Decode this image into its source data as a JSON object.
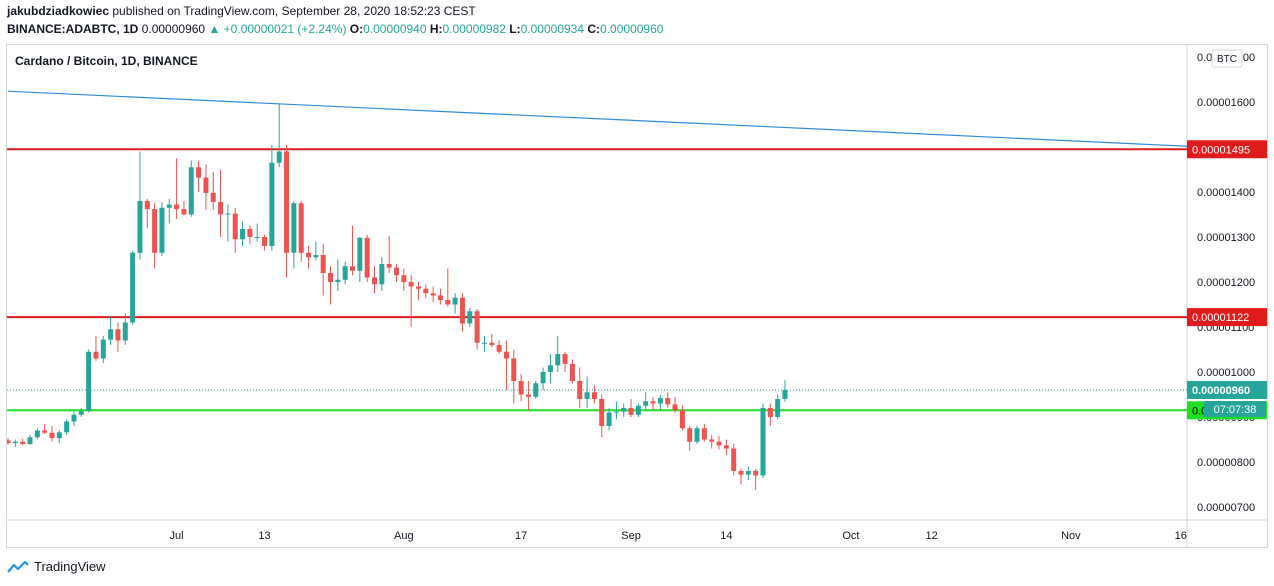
{
  "header": {
    "author": "jakubdziadkowiec",
    "published_text": "published on TradingView.com, September 28, 2020 18:52:23 CEST",
    "symbol": "BINANCE:ADABTC, 1D",
    "last": "0.00000960",
    "change": "+0.00000021 (+2.24%)",
    "o_label": "O:",
    "o": "0.00000940",
    "h_label": "H:",
    "h": "0.00000982",
    "l_label": "L:",
    "l": "0.00000934",
    "c_label": "C:",
    "c": "0.00000960"
  },
  "legend_title": "Cardano / Bitcoin, 1D, BINANCE",
  "currency_badge": "BTC",
  "footer_brand": "TradingView",
  "colors": {
    "up": "#26a69a",
    "down": "#ef5350",
    "resistance": "#e01b1b",
    "support": "#1fe01f",
    "trendline": "#2f8bd7",
    "price_label": "#26a69a"
  },
  "chart_data": {
    "type": "candlestick",
    "title": "Cardano / Bitcoin, 1D, BINANCE",
    "ylim": [
      6.72e-06,
      1.718e-05
    ],
    "y_ticks": [
      "0.00000700",
      "0.00000800",
      "0.00000900",
      "0.00001000",
      "0.00001100",
      "0.00001200",
      "0.00001300",
      "0.00001400",
      "0.00001600",
      "0.00001700"
    ],
    "x_ticks": [
      {
        "day": 23,
        "label": "Jul"
      },
      {
        "day": 35,
        "label": "13"
      },
      {
        "day": 54,
        "label": "Aug"
      },
      {
        "day": 70,
        "label": "17"
      },
      {
        "day": 85,
        "label": "Sep"
      },
      {
        "day": 98,
        "label": "14"
      },
      {
        "day": 115,
        "label": "Oct"
      },
      {
        "day": 126,
        "label": "12"
      },
      {
        "day": 145,
        "label": "Nov"
      },
      {
        "day": 160,
        "label": "16"
      }
    ],
    "day_zero": "2020-06-08",
    "countdown": "07:07:38",
    "horizontal_levels": [
      {
        "name": "resistance-upper",
        "value": 1.495e-05,
        "label": "0.00001495",
        "color": "#e01b1b"
      },
      {
        "name": "resistance-lower",
        "value": 1.122e-05,
        "label": "0.00001122",
        "color": "#e01b1b"
      },
      {
        "name": "support",
        "value": 9.15e-06,
        "label": "0.00000915",
        "color": "#1fe01f"
      }
    ],
    "last_price": {
      "value": 9.6e-06,
      "label": "0.00000960"
    },
    "trendline": {
      "from": {
        "day": 0,
        "value": 1.624e-05
      },
      "to": {
        "day": 163,
        "value": 1.5e-05
      }
    },
    "candles": [
      [
        8.48e-06,
        8.53e-06,
        8.38e-06,
        8.42e-06
      ],
      [
        8.42e-06,
        8.5e-06,
        8.34e-06,
        8.45e-06
      ],
      [
        8.45e-06,
        8.52e-06,
        8.37e-06,
        8.4e-06
      ],
      [
        8.4e-06,
        8.6e-06,
        8.38e-06,
        8.55e-06
      ],
      [
        8.55e-06,
        8.75e-06,
        8.5e-06,
        8.7e-06
      ],
      [
        8.7e-06,
        8.85e-06,
        8.62e-06,
        8.65e-06
      ],
      [
        8.65e-06,
        8.8e-06,
        8.45e-06,
        8.53e-06
      ],
      [
        8.53e-06,
        8.7e-06,
        8.42e-06,
        8.66e-06
      ],
      [
        8.66e-06,
        8.95e-06,
        8.6e-06,
        8.9e-06
      ],
      [
        8.9e-06,
        9.13e-06,
        8.8e-06,
        9.05e-06
      ],
      [
        9.05e-06,
        9.2e-06,
        9e-06,
        9.13e-06
      ],
      [
        9.13e-06,
        1.05e-05,
        9.1e-06,
        1.045e-05
      ],
      [
        1.045e-05,
        1.08e-05,
        1.025e-05,
        1.03e-05
      ],
      [
        1.03e-05,
        1.08e-05,
        1.02e-05,
        1.072e-05
      ],
      [
        1.072e-05,
        1.125e-05,
        1.06e-05,
        1.095e-05
      ],
      [
        1.095e-05,
        1.11e-05,
        1.045e-05,
        1.07e-05
      ],
      [
        1.07e-05,
        1.13e-05,
        1.06e-05,
        1.11e-05
      ],
      [
        1.11e-05,
        1.27e-05,
        1.105e-05,
        1.265e-05
      ],
      [
        1.265e-05,
        1.49e-05,
        1.25e-05,
        1.38e-05
      ],
      [
        1.38e-05,
        1.385e-05,
        1.32e-05,
        1.362e-05
      ],
      [
        1.362e-05,
        1.375e-05,
        1.23e-05,
        1.265e-05
      ],
      [
        1.265e-05,
        1.378e-05,
        1.258e-05,
        1.365e-05
      ],
      [
        1.365e-05,
        1.385e-05,
        1.33e-05,
        1.372e-05
      ],
      [
        1.372e-05,
        1.475e-05,
        1.34e-05,
        1.362e-05
      ],
      [
        1.362e-05,
        1.38e-05,
        1.348e-05,
        1.35e-05
      ],
      [
        1.35e-05,
        1.47e-05,
        1.345e-05,
        1.455e-05
      ],
      [
        1.455e-05,
        1.47e-05,
        1.4e-05,
        1.432e-05
      ],
      [
        1.432e-05,
        1.462e-05,
        1.36e-05,
        1.398e-05
      ],
      [
        1.398e-05,
        1.445e-05,
        1.36e-05,
        1.378e-05
      ],
      [
        1.378e-05,
        1.45e-05,
        1.3e-05,
        1.35e-05
      ],
      [
        1.35e-05,
        1.372e-05,
        1.29e-05,
        1.352e-05
      ],
      [
        1.352e-05,
        1.365e-05,
        1.265e-05,
        1.295e-05
      ],
      [
        1.295e-05,
        1.335e-05,
        1.28e-05,
        1.318e-05
      ],
      [
        1.318e-05,
        1.325e-05,
        1.285e-05,
        1.3e-05
      ],
      [
        1.3e-05,
        1.33e-05,
        1.29e-05,
        1.3e-05
      ],
      [
        1.3e-05,
        1.305e-05,
        1.27e-05,
        1.28e-05
      ],
      [
        1.28e-05,
        1.505e-05,
        1.27e-05,
        1.465e-05
      ],
      [
        1.465e-05,
        1.595e-05,
        1.455e-05,
        1.49e-05
      ],
      [
        1.49e-05,
        1.505e-05,
        1.21e-05,
        1.265e-05
      ],
      [
        1.265e-05,
        1.38e-05,
        1.23e-05,
        1.375e-05
      ],
      [
        1.375e-05,
        1.38e-05,
        1.245e-05,
        1.265e-05
      ],
      [
        1.265e-05,
        1.28e-05,
        1.23e-05,
        1.255e-05
      ],
      [
        1.255e-05,
        1.29e-05,
        1.248e-05,
        1.26e-05
      ],
      [
        1.26e-05,
        1.285e-05,
        1.17e-05,
        1.22e-05
      ],
      [
        1.22e-05,
        1.235e-05,
        1.15e-05,
        1.2e-05
      ],
      [
        1.2e-05,
        1.25e-05,
        1.18e-05,
        1.205e-05
      ],
      [
        1.205e-05,
        1.245e-05,
        1.195e-05,
        1.235e-05
      ],
      [
        1.235e-05,
        1.325e-05,
        1.215e-05,
        1.225e-05
      ],
      [
        1.225e-05,
        1.3e-05,
        1.2e-05,
        1.298e-05
      ],
      [
        1.298e-05,
        1.305e-05,
        1.2e-05,
        1.21e-05
      ],
      [
        1.21e-05,
        1.235e-05,
        1.175e-05,
        1.195e-05
      ],
      [
        1.195e-05,
        1.255e-05,
        1.18e-05,
        1.24e-05
      ],
      [
        1.24e-05,
        1.302e-05,
        1.22e-05,
        1.232e-05
      ],
      [
        1.232e-05,
        1.24e-05,
        1.2e-05,
        1.215e-05
      ],
      [
        1.215e-05,
        1.23e-05,
        1.18e-05,
        1.2e-05
      ],
      [
        1.2e-05,
        1.215e-05,
        1.1e-05,
        1.19e-05
      ],
      [
        1.19e-05,
        1.2e-05,
        1.16e-05,
        1.185e-05
      ],
      [
        1.185e-05,
        1.195e-05,
        1.165e-05,
        1.175e-05
      ],
      [
        1.175e-05,
        1.19e-05,
        1.155e-05,
        1.17e-05
      ],
      [
        1.17e-05,
        1.185e-05,
        1.15e-05,
        1.16e-05
      ],
      [
        1.16e-05,
        1.23e-05,
        1.145e-05,
        1.15e-05
      ],
      [
        1.15e-05,
        1.175e-05,
        1.13e-05,
        1.165e-05
      ],
      [
        1.165e-05,
        1.175e-05,
        1.09e-05,
        1.108e-05
      ],
      [
        1.108e-05,
        1.142e-05,
        1.1e-05,
        1.135e-05
      ],
      [
        1.135e-05,
        1.14e-05,
        1.05e-05,
        1.065e-05
      ],
      [
        1.065e-05,
        1.08e-05,
        1.045e-05,
        1.065e-05
      ],
      [
        1.065e-05,
        1.085e-05,
        1.055e-05,
        1.06e-05
      ],
      [
        1.06e-05,
        1.07e-05,
        1.04e-05,
        1.045e-05
      ],
      [
        1.045e-05,
        1.07e-05,
        9.6e-06,
        1.03e-05
      ],
      [
        1.03e-05,
        1.05e-05,
        9.3e-06,
        9.8e-06
      ],
      [
        9.8e-06,
        9.95e-06,
        9.35e-06,
        9.5e-06
      ],
      [
        9.5e-06,
        9.8e-06,
        9.15e-06,
        9.45e-06
      ],
      [
        9.45e-06,
        9.8e-06,
        9.4e-06,
        9.75e-06
      ],
      [
        9.75e-06,
        1.01e-05,
        9.6e-06,
        1e-05
      ],
      [
        1e-05,
        1.04e-05,
        9.75e-06,
        1.015e-05
      ],
      [
        1.015e-05,
        1.08e-05,
        1e-05,
        1.04e-05
      ],
      [
        1.04e-05,
        1.045e-05,
        1e-05,
        1.018e-05
      ],
      [
        1.018e-05,
        1.028e-05,
        9.75e-06,
        9.8e-06
      ],
      [
        9.8e-06,
        1.01e-05,
        9.2e-06,
        9.4e-06
      ],
      [
        9.4e-06,
        9.9e-06,
        9.2e-06,
        9.55e-06
      ],
      [
        9.55e-06,
        9.7e-06,
        9.3e-06,
        9.4e-06
      ],
      [
        9.4e-06,
        9.5e-06,
        8.55e-06,
        8.8e-06
      ],
      [
        8.8e-06,
        9.2e-06,
        8.7e-06,
        9.1e-06
      ],
      [
        9.1e-06,
        9.35e-06,
        8.95e-06,
        9.12e-06
      ],
      [
        9.12e-06,
        9.3e-06,
        9e-06,
        9.2e-06
      ],
      [
        9.2e-06,
        9.4e-06,
        9e-06,
        9.05e-06
      ],
      [
        9.05e-06,
        9.3e-06,
        9e-06,
        9.25e-06
      ],
      [
        9.25e-06,
        9.55e-06,
        9.15e-06,
        9.35e-06
      ],
      [
        9.35e-06,
        9.45e-06,
        9.15e-06,
        9.3e-06
      ],
      [
        9.3e-06,
        9.5e-06,
        9.15e-06,
        9.42e-06
      ],
      [
        9.42e-06,
        9.55e-06,
        9.2e-06,
        9.28e-06
      ],
      [
        9.28e-06,
        9.45e-06,
        9.1e-06,
        9.15e-06
      ],
      [
        9.15e-06,
        9.25e-06,
        8.7e-06,
        8.75e-06
      ],
      [
        8.75e-06,
        8.8e-06,
        8.25e-06,
        8.45e-06
      ],
      [
        8.45e-06,
        8.8e-06,
        8.4e-06,
        8.75e-06
      ],
      [
        8.75e-06,
        8.85e-06,
        8.45e-06,
        8.5e-06
      ],
      [
        8.5e-06,
        8.6e-06,
        8.3e-06,
        8.45e-06
      ],
      [
        8.45e-06,
        8.58e-06,
        8.28e-06,
        8.37e-06
      ],
      [
        8.37e-06,
        8.5e-06,
        8.15e-06,
        8.3e-06
      ],
      [
        8.3e-06,
        8.4e-06,
        7.7e-06,
        7.8e-06
      ],
      [
        7.8e-06,
        7.85e-06,
        7.5e-06,
        7.72e-06
      ],
      [
        7.72e-06,
        7.9e-06,
        7.6e-06,
        7.8e-06
      ],
      [
        7.8e-06,
        7.85e-06,
        7.38e-06,
        7.7e-06
      ],
      [
        7.7e-06,
        9.3e-06,
        7.65e-06,
        9.2e-06
      ],
      [
        9.2e-06,
        9.3e-06,
        8.8e-06,
        9e-06
      ],
      [
        9e-06,
        9.5e-06,
        8.95e-06,
        9.4e-06
      ],
      [
        9.4e-06,
        9.82e-06,
        9.34e-06,
        9.6e-06
      ]
    ]
  }
}
